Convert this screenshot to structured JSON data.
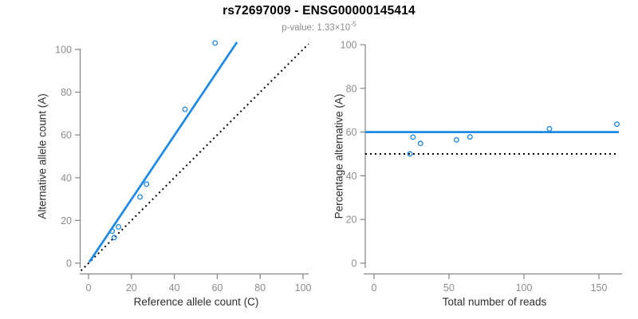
{
  "title": "rs72697009 - ENSG00000145414",
  "subtitle": {
    "prefix": "p-value: 1.33×10",
    "exponent": "-5"
  },
  "colors": {
    "accent_blue": "#1E88E5",
    "dotted_black": "#000000",
    "axis_line": "#848484",
    "tick_label": "#8c8c8c",
    "axis_title": "#303030",
    "title_black": "#000000",
    "subtitle_gray": "#8c8c8c",
    "background": "#ffffff"
  },
  "chart_data": [
    {
      "type": "scatter",
      "panel": "left",
      "xlabel": "Reference allele count (C)",
      "ylabel": "Alternative allele count (A)",
      "xlim": [
        0,
        100
      ],
      "ylim": [
        0,
        100
      ],
      "xticks": [
        0,
        20,
        40,
        60,
        80,
        100
      ],
      "yticks": [
        0,
        20,
        40,
        60,
        80,
        100
      ],
      "points": [
        [
          11,
          15
        ],
        [
          12,
          12
        ],
        [
          14,
          17
        ],
        [
          24,
          31
        ],
        [
          27,
          37
        ],
        [
          45,
          72
        ],
        [
          59,
          103
        ]
      ],
      "fit_line": {
        "style": "solid",
        "color_role": "accent_blue",
        "slope": 1.494,
        "intercept": 0
      },
      "reference_line": {
        "style": "dotted",
        "color_role": "dotted_black",
        "slope": 1,
        "intercept": 0
      },
      "grid": false,
      "legend": false
    },
    {
      "type": "scatter",
      "panel": "right",
      "xlabel": "Total number of reads",
      "ylabel": "Percentage alternative (A)",
      "xlim": [
        0,
        162
      ],
      "ylim": [
        0,
        100
      ],
      "xticks": [
        0,
        50,
        100,
        150
      ],
      "yticks": [
        0,
        20,
        40,
        60,
        80,
        100
      ],
      "points": [
        [
          26,
          57.7
        ],
        [
          24,
          50
        ],
        [
          31,
          54.8
        ],
        [
          55,
          56.4
        ],
        [
          64,
          57.8
        ],
        [
          117,
          61.5
        ],
        [
          162,
          63.6
        ]
      ],
      "fit_line": {
        "style": "solid",
        "color_role": "accent_blue",
        "y": 60
      },
      "reference_line": {
        "style": "dotted",
        "color_role": "dotted_black",
        "y": 50
      },
      "grid": false,
      "legend": false
    }
  ]
}
